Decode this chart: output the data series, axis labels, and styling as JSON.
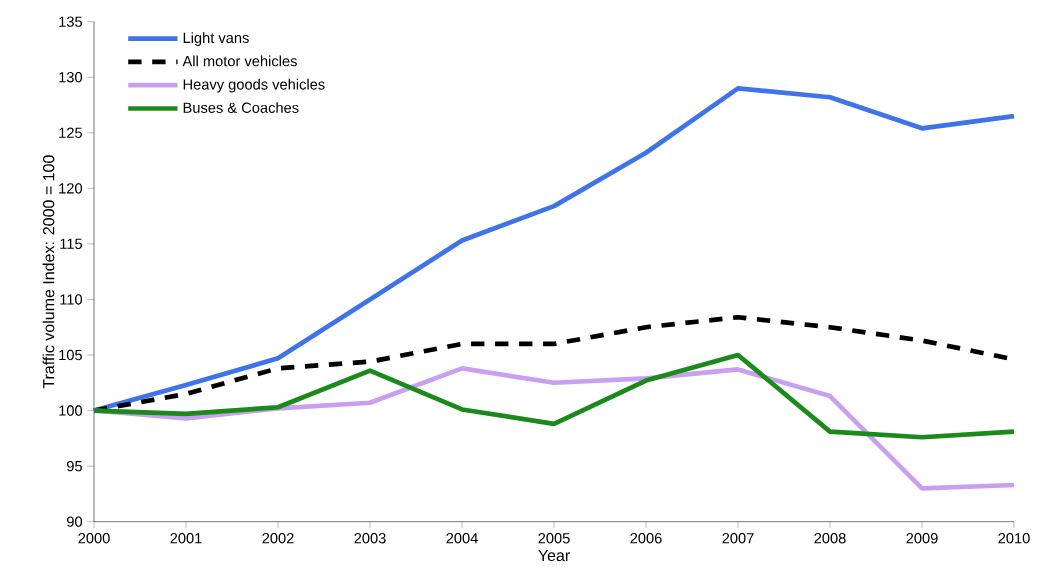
{
  "chart_data": {
    "type": "line",
    "xlabel": "Year",
    "ylabel": "Traffic volume Index: 2000 = 100",
    "categories": [
      "2000",
      "2001",
      "2002",
      "2003",
      "2004",
      "2005",
      "2006",
      "2007",
      "2008",
      "2009",
      "2010"
    ],
    "ylim": [
      90,
      135
    ],
    "yticks": [
      90,
      95,
      100,
      105,
      110,
      115,
      120,
      125,
      130,
      135
    ],
    "legend": "top left",
    "grid": false,
    "series": [
      {
        "name": "Light vans",
        "color": "#3f73e8",
        "line_style": "solid",
        "values": [
          100,
          102.3,
          104.7,
          110,
          115.3,
          118.4,
          123.2,
          129,
          128.2,
          125.4,
          126.5
        ]
      },
      {
        "name": "All motor vehicles",
        "color": "#000000",
        "line_style": "dashed",
        "values": [
          100,
          101.5,
          103.8,
          104.4,
          106,
          106,
          107.5,
          108.4,
          107.5,
          106.3,
          104.6
        ]
      },
      {
        "name": "Heavy goods vehicles",
        "color": "#c9a0f0",
        "line_style": "solid",
        "values": [
          100,
          99.3,
          100.2,
          100.7,
          103.8,
          102.5,
          102.9,
          103.7,
          101.3,
          93,
          93.3
        ]
      },
      {
        "name": "Buses & Coaches",
        "color": "#1a8a1a",
        "line_style": "solid",
        "values": [
          100,
          99.7,
          100.3,
          103.6,
          100.1,
          98.8,
          102.7,
          105,
          98.1,
          97.6,
          98.1
        ]
      }
    ]
  }
}
